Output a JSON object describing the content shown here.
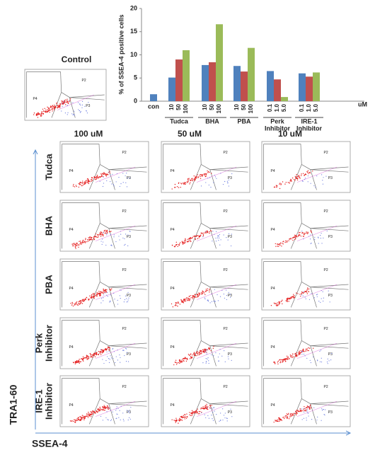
{
  "chart_data": {
    "type": "bar",
    "y_label": "% of SSEA-4 positive cells",
    "unit": "uM",
    "ylim": [
      0,
      20
    ],
    "yticks": [
      0,
      5,
      10,
      15,
      20
    ],
    "colors": [
      "#4f81bd",
      "#c0504d",
      "#9bbb59"
    ],
    "groups": [
      {
        "name": [
          "con"
        ],
        "doses": [],
        "values": [
          1.5
        ]
      },
      {
        "name": [
          "Tudca"
        ],
        "doses": [
          "10",
          "50",
          "100"
        ],
        "values": [
          5.1,
          9.0,
          11.0
        ]
      },
      {
        "name": [
          "BHA"
        ],
        "doses": [
          "10",
          "50",
          "100"
        ],
        "values": [
          7.8,
          8.4,
          16.6
        ]
      },
      {
        "name": [
          "PBA"
        ],
        "doses": [
          "10",
          "50",
          "100"
        ],
        "values": [
          7.6,
          6.4,
          11.5
        ]
      },
      {
        "name": [
          "Perk",
          "Inhibitor"
        ],
        "doses": [
          "0.1",
          "1.0",
          "5.0"
        ],
        "values": [
          6.5,
          4.7,
          0.9
        ]
      },
      {
        "name": [
          "IRE-1",
          "Inhibitor"
        ],
        "doses": [
          "0.1",
          "1.0",
          "5.0"
        ],
        "values": [
          6.0,
          5.3,
          6.2
        ]
      }
    ]
  },
  "flow": {
    "control_title": "Control",
    "columns": [
      "100 uM",
      "50 uM",
      "10 uM"
    ],
    "rows": [
      [
        "Tudca"
      ],
      [
        "BHA"
      ],
      [
        "PBA"
      ],
      [
        "Perk",
        "Inhibitor"
      ],
      [
        "IRE-1",
        "Inhibitor"
      ]
    ],
    "gates": [
      "P2",
      "P3",
      "P4"
    ],
    "y_axis": "TRA1-60",
    "x_axis": "SSEA-4"
  }
}
